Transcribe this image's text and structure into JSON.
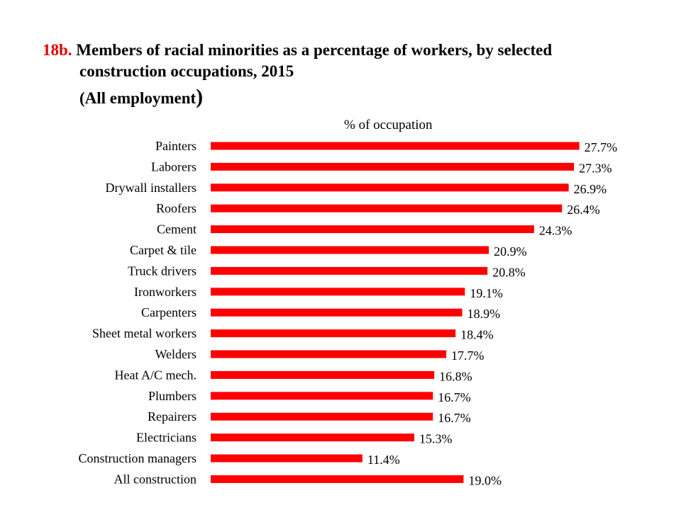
{
  "title": {
    "number": "18b.",
    "line1": "Members of racial minorities as a percentage of workers, by selected",
    "line2": "construction occupations, 2015",
    "subtitle_text": "(All employment",
    "subtitle_paren": ")"
  },
  "colors": {
    "bar": "#ff0000",
    "title_number": "#e00000"
  },
  "chart_data": {
    "type": "bar",
    "orientation": "horizontal",
    "xlabel": "% of occupation",
    "ylabel": "",
    "grid": false,
    "legend": "none",
    "categories": [
      "Painters",
      "Laborers",
      "Drywall installers",
      "Roofers",
      "Cement",
      "Carpet & tile",
      "Truck drivers",
      "Ironworkers",
      "Carpenters",
      "Sheet metal workers",
      "Welders",
      "Heat A/C mech.",
      "Plumbers",
      "Repairers",
      "Electricians",
      "Construction managers",
      "All construction"
    ],
    "values": [
      27.7,
      27.3,
      26.9,
      26.4,
      24.3,
      20.9,
      20.8,
      19.1,
      18.9,
      18.4,
      17.7,
      16.8,
      16.7,
      16.7,
      15.3,
      11.4,
      19.0
    ],
    "labels": [
      "27.7%",
      "27.3%",
      "26.9%",
      "26.4%",
      "24.3%",
      "20.9%",
      "20.8%",
      "19.1%",
      "18.9%",
      "18.4%",
      "17.7%",
      "16.8%",
      "16.7%",
      "16.7%",
      "15.3%",
      "11.4%",
      "19.0%"
    ]
  }
}
